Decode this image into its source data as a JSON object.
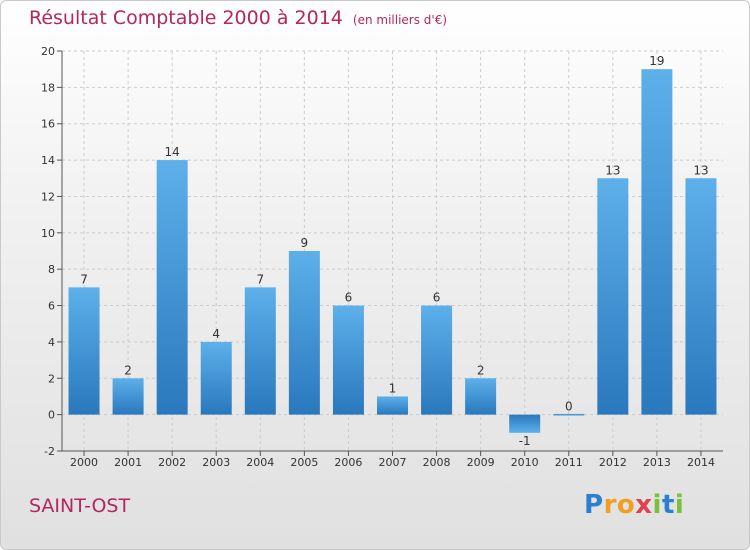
{
  "title": "Résultat Comptable 2000 à 2014",
  "subtitle": "(en milliers d'€)",
  "commune": "SAINT-OST",
  "logo": {
    "text": "Proxiti",
    "letters": [
      "P",
      "r",
      "o",
      "x",
      "i",
      "t",
      "i"
    ],
    "colors": [
      "#2b7fd1",
      "#f0a020",
      "#f0a020",
      "#e04050",
      "#7bbf3b",
      "#2b7fd1",
      "#7bbf3b"
    ]
  },
  "colors": {
    "title": "#b5265c",
    "bar": "#4a9fdc",
    "bar_dark": "#2f7fc2",
    "axis": "#555555",
    "grid": "#cccccc"
  },
  "chart_data": {
    "type": "bar",
    "categories": [
      "2000",
      "2001",
      "2002",
      "2003",
      "2004",
      "2005",
      "2006",
      "2007",
      "2008",
      "2009",
      "2010",
      "2011",
      "2012",
      "2013",
      "2014"
    ],
    "values": [
      7,
      2,
      14,
      4,
      7,
      9,
      6,
      1,
      6,
      2,
      -1,
      0,
      13,
      19,
      13
    ],
    "data_labels": [
      "7",
      "2",
      "14",
      "4",
      "7",
      "9",
      "6",
      "1",
      "6",
      "2",
      "-1",
      "0",
      "13",
      "19",
      "13"
    ],
    "ylim": [
      -2,
      20
    ],
    "yticks": [
      -2,
      0,
      2,
      4,
      6,
      8,
      10,
      12,
      14,
      16,
      18,
      20
    ],
    "grid": true
  }
}
